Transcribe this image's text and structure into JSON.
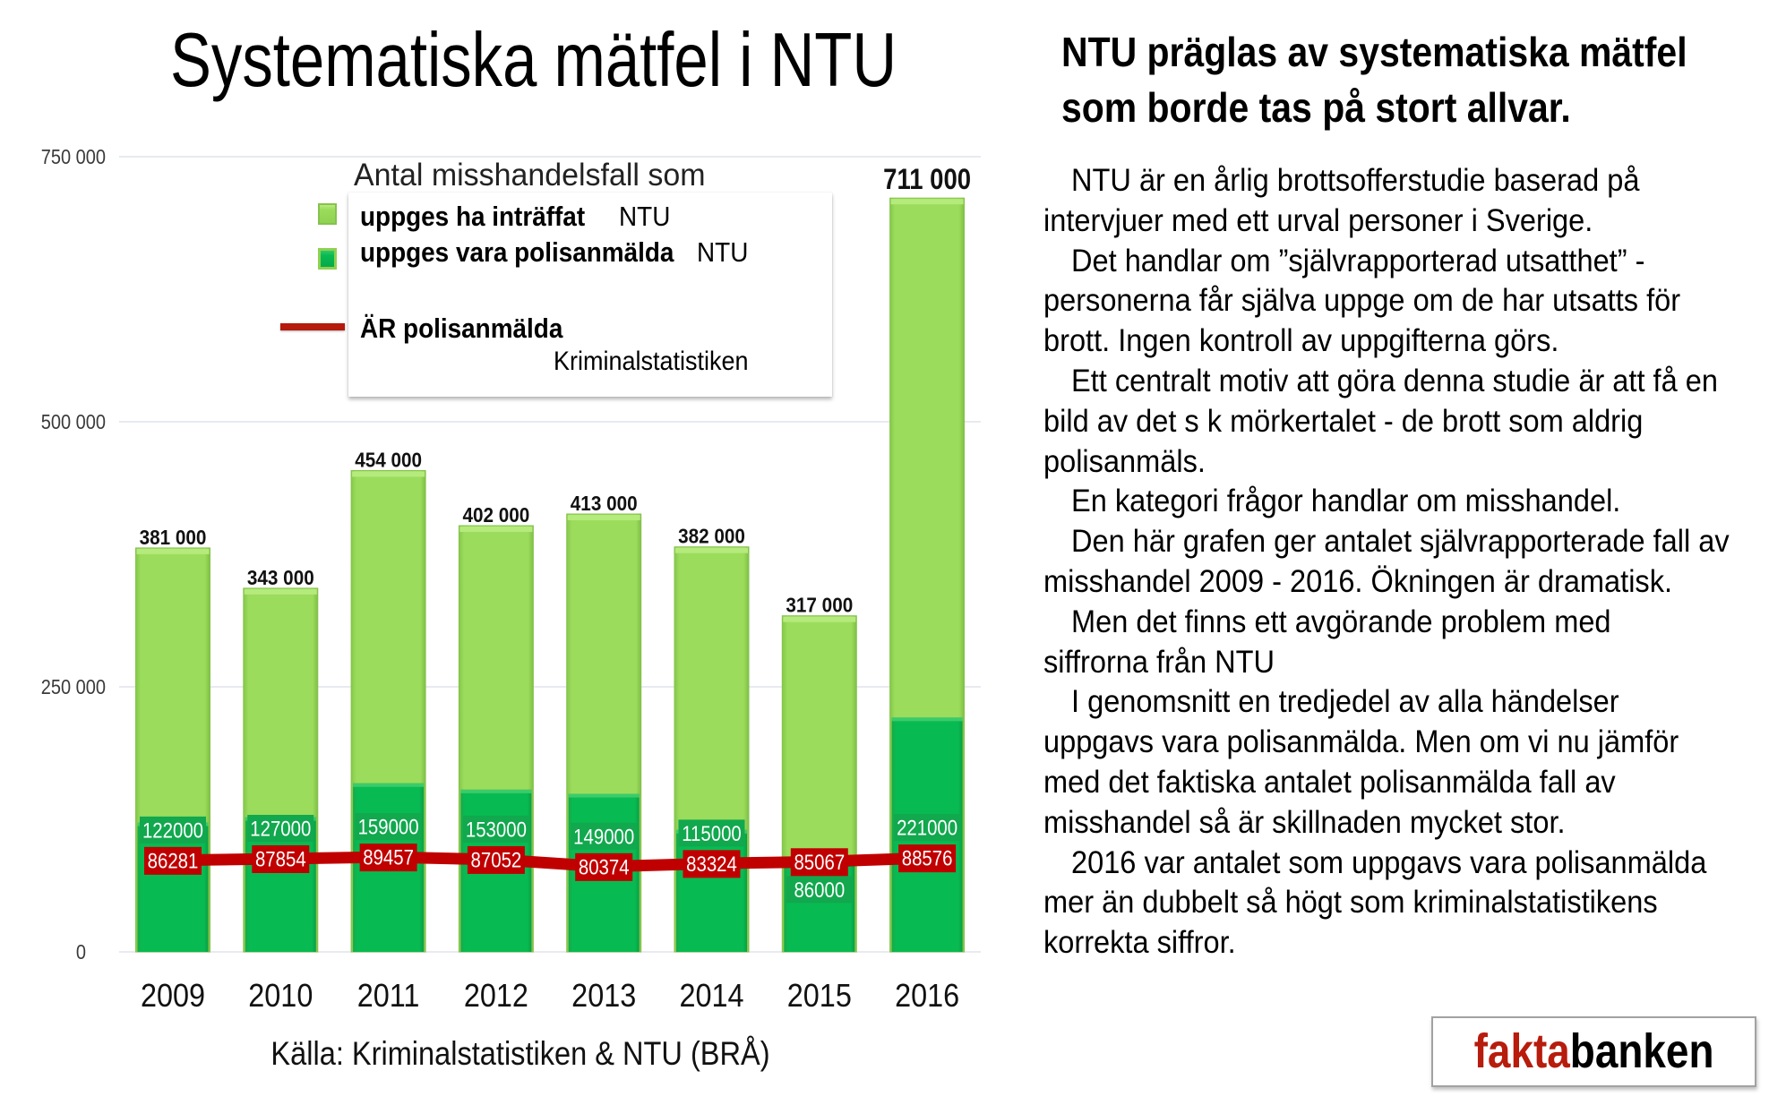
{
  "title": "Systematiska mätfel i NTU",
  "headline": [
    "NTU präglas av systematiska mätfel",
    "som borde tas på stort allvar."
  ],
  "body": {
    "paragraphs": [
      [
        "NTU är en årlig brottsofferstudie baserad på",
        "intervjuer med ett urval personer i Sverige."
      ],
      [
        "Det handlar om ”självrapporterad utsatthet” -",
        "personerna får själva uppge om de har utsatts för",
        "brott. Ingen kontroll av uppgifterna görs."
      ],
      [
        "Ett centralt motiv att göra denna studie är att få en",
        "bild av det s k mörkertalet - de brott som aldrig",
        "polisanmäls."
      ],
      [
        "En kategori frågor handlar om misshandel."
      ],
      [
        "Den här grafen ger antalet självrapporterade fall av",
        "misshandel 2009 - 2016. Ökningen är dramatisk."
      ],
      [
        "Men det finns ett avgörande problem med",
        "siffrorna från NTU"
      ],
      [
        "I genomsnitt en tredjedel av alla händelser",
        "uppgavs vara polisanmälda. Men om vi nu jämför",
        "med det faktiska antalet polisanmälda fall av",
        "misshandel så är skillnaden mycket stor."
      ],
      [
        "2016 var antalet som uppgavs vara polisanmälda",
        "mer än dubbelt så högt som kriminalstatistikens",
        "korrekta siffror."
      ]
    ]
  },
  "source": "Källa: Kriminalstatistiken & NTU (BRÅ)",
  "logo": {
    "part1": "fakta",
    "part2": "banken"
  },
  "chart_data": {
    "type": "bar",
    "title": "Antal misshandelsfall som",
    "xlabel": "",
    "ylabel": "",
    "categories": [
      "2009",
      "2010",
      "2011",
      "2012",
      "2013",
      "2014",
      "2015",
      "2016"
    ],
    "series": [
      {
        "name": "uppges ha inträffat",
        "source": "NTU",
        "kind": "bar",
        "values": [
          381000,
          343000,
          454000,
          402000,
          413000,
          382000,
          317000,
          711000
        ],
        "labels": [
          "381 000",
          "343 000",
          "454 000",
          "402 000",
          "413 000",
          "382 000",
          "317 000",
          "711 000"
        ]
      },
      {
        "name": "uppges vara polisanmälda",
        "source": "NTU",
        "kind": "bar",
        "values": [
          122000,
          127000,
          159000,
          153000,
          149000,
          115000,
          86000,
          221000
        ]
      },
      {
        "name": "ÄR polisanmälda",
        "source": "Kriminalstatistiken",
        "kind": "line",
        "values": [
          86281,
          87854,
          89457,
          87052,
          80374,
          83324,
          85067,
          88576
        ]
      }
    ],
    "yticks": [
      0,
      250000,
      500000,
      750000
    ],
    "ytick_labels": [
      "0",
      "250 000",
      "500 000",
      "750 000"
    ],
    "ylim": [
      0,
      750000
    ],
    "grid": true,
    "legend_position": "top-left",
    "colors": {
      "bar_total": "#9CDC5C",
      "bar_reported": "#08BA52",
      "line": "#C00000",
      "logo_accent": "#B71C0C"
    }
  }
}
